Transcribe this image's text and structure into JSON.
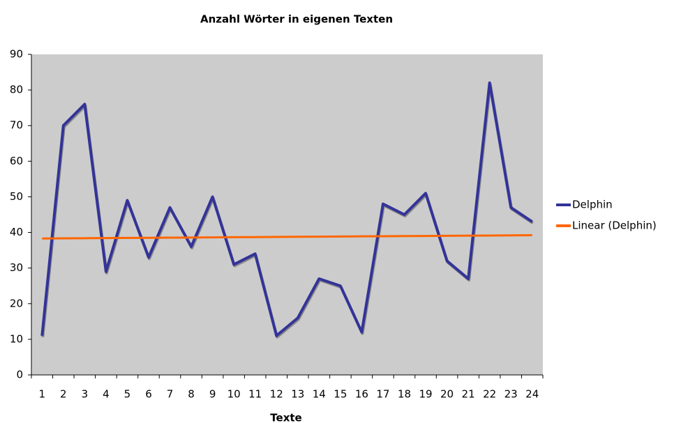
{
  "chart_data": {
    "type": "line",
    "title": "Anzahl Wörter in eigenen Texten",
    "x_label": "Texte",
    "categories": [
      "1",
      "2",
      "3",
      "4",
      "5",
      "6",
      "7",
      "8",
      "9",
      "10",
      "11",
      "12",
      "13",
      "14",
      "15",
      "16",
      "17",
      "18",
      "19",
      "20",
      "21",
      "22",
      "23",
      "24"
    ],
    "series": [
      {
        "name": "Delphin",
        "color": "#333399",
        "values": [
          11,
          70,
          76,
          29,
          49,
          33,
          47,
          36,
          50,
          31,
          34,
          11,
          16,
          27,
          25,
          12,
          48,
          45,
          51,
          32,
          27,
          82,
          47,
          43
        ]
      },
      {
        "name": "Linear (Delphin)",
        "color": "#ff6600",
        "values": [
          38.3,
          38.34,
          38.38,
          38.42,
          38.46,
          38.5,
          38.54,
          38.58,
          38.62,
          38.66,
          38.7,
          38.74,
          38.78,
          38.82,
          38.86,
          38.9,
          38.94,
          38.98,
          39.02,
          39.06,
          39.1,
          39.14,
          39.18,
          39.22
        ]
      }
    ],
    "ylim": [
      0,
      90
    ],
    "yticks": [
      0,
      10,
      20,
      30,
      40,
      50,
      60,
      70,
      80,
      90
    ],
    "grid": false,
    "legend": "right",
    "plot_background": "#cccccc"
  }
}
